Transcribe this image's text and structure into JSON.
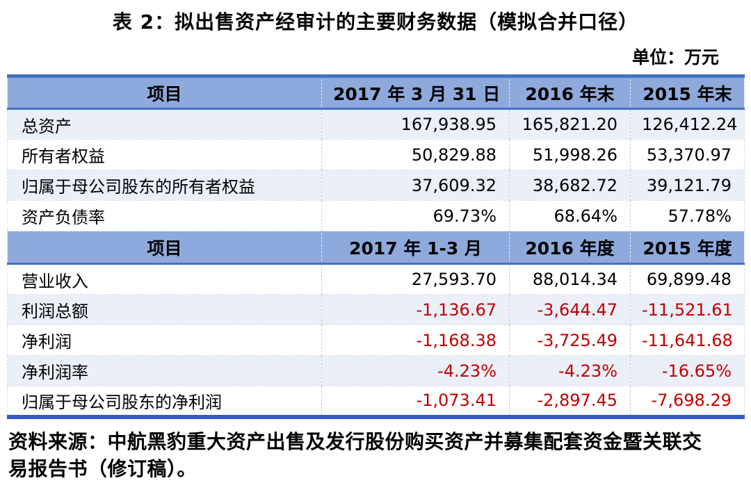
{
  "document": {
    "title": "表 2：拟出售资产经审计的主要财务数据（模拟合并口径）",
    "unit_label": "单位：万元",
    "source_lines": [
      "资料来源：中航黑豹重大资产出售及发行股份购买资产并募集配套资金暨关联交",
      "易报告书（修订稿）。"
    ]
  },
  "colors": {
    "header_bg": "#8EA9DB",
    "band_bg": "#EAEFF8",
    "accent_border": "#4472C4",
    "bottom_border": "#3457C9",
    "negative_text": "#C00000"
  },
  "table": {
    "balance_section": {
      "headers": {
        "item": "项目",
        "c1": "2017 年 3 月 31 日",
        "c2": "2016 年末",
        "c3": "2015 年末"
      },
      "rows": [
        {
          "label": "总资产",
          "v1": "167,938.95",
          "v2": "165,821.20",
          "v3": "126,412.24"
        },
        {
          "label": "所有者权益",
          "v1": "50,829.88",
          "v2": "51,998.26",
          "v3": "53,370.97"
        },
        {
          "label": "归属于母公司股东的所有者权益",
          "v1": "37,609.32",
          "v2": "38,682.72",
          "v3": "39,121.79"
        },
        {
          "label": "资产负债率",
          "v1": "69.73%",
          "v2": "68.64%",
          "v3": "57.78%"
        }
      ]
    },
    "income_section": {
      "headers": {
        "item": "项目",
        "c1": "2017 年 1-3 月",
        "c2": "2016 年度",
        "c3": "2015 年度"
      },
      "rows": [
        {
          "label": "营业收入",
          "v1": "27,593.70",
          "v2": "88,014.34",
          "v3": "69,899.48"
        },
        {
          "label": "利润总额",
          "v1": "-1,136.67",
          "v2": "-3,644.47",
          "v3": "-11,521.61"
        },
        {
          "label": "净利润",
          "v1": "-1,168.38",
          "v2": "-3,725.49",
          "v3": "-11,641.68"
        },
        {
          "label": "净利润率",
          "v1": "-4.23%",
          "v2": "-4.23%",
          "v3": "-16.65%"
        },
        {
          "label": "归属于母公司股东的净利润",
          "v1": "-1,073.41",
          "v2": "-2,897.45",
          "v3": "-7,698.29"
        }
      ]
    }
  }
}
